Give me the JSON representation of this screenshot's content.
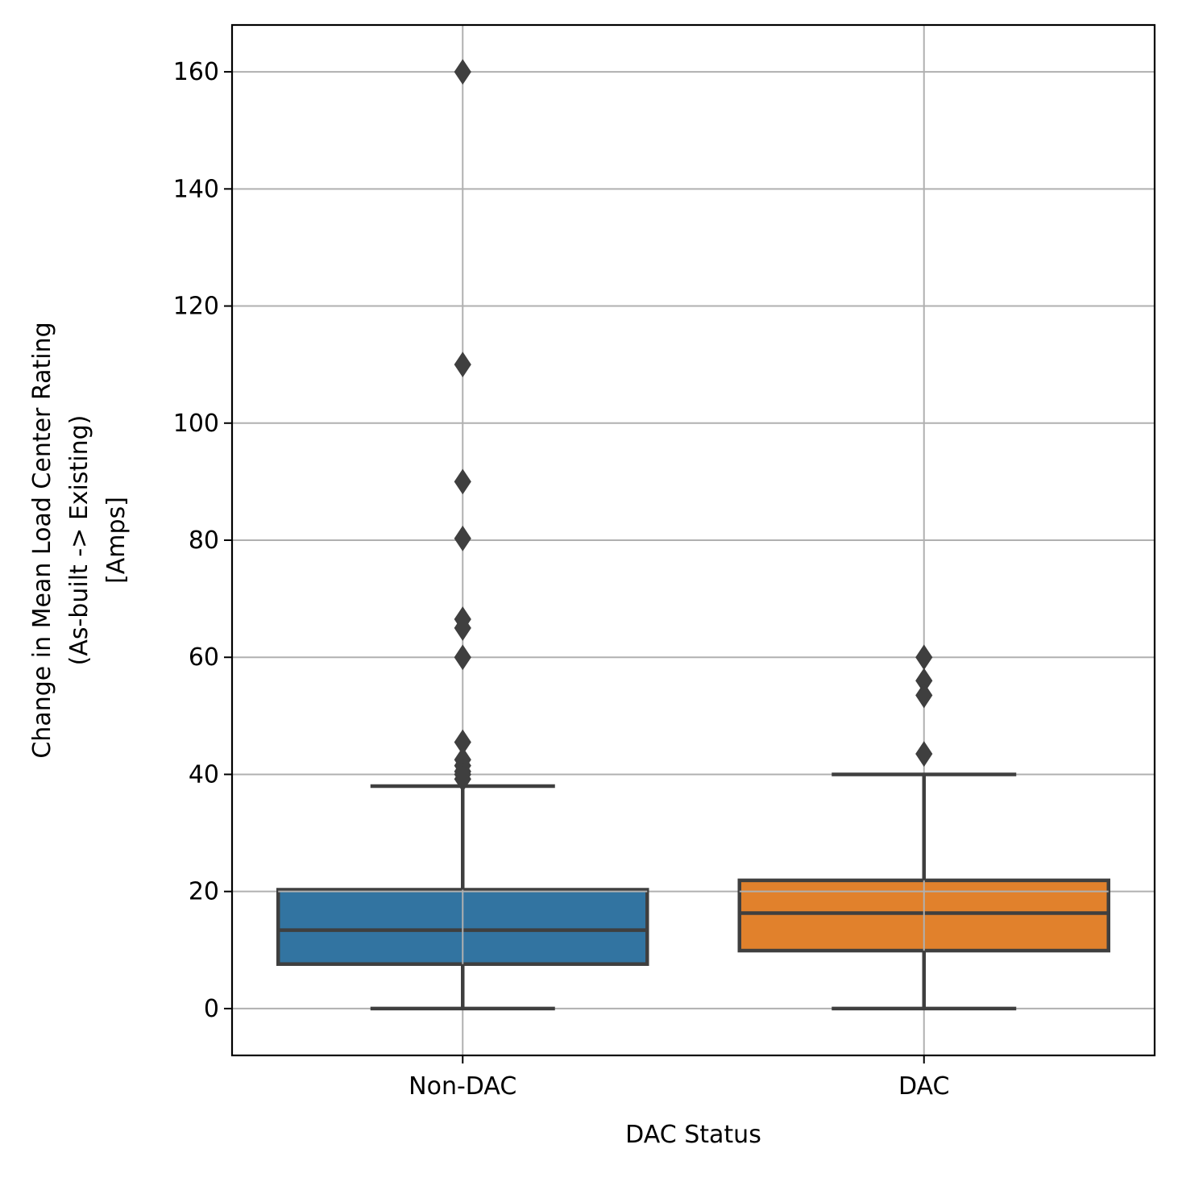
{
  "chart_data": {
    "type": "box",
    "xlabel": "DAC Status",
    "ylabel_lines": [
      "Change in Mean Load Center Rating",
      "(As-built -> Existing)",
      "[Amps]"
    ],
    "categories": [
      "Non-DAC",
      "DAC"
    ],
    "ylim": [
      -8,
      168
    ],
    "yticks": [
      0,
      20,
      40,
      60,
      80,
      100,
      120,
      140,
      160
    ],
    "grid": true,
    "boxes": [
      {
        "category": "Non-DAC",
        "color": "#3274a1",
        "whisker_low": 0,
        "q1": 7.6,
        "median": 13.4,
        "q3": 20.3,
        "whisker_high": 38,
        "outliers": [
          160,
          110,
          90,
          80.3,
          66.5,
          65,
          60,
          45.5,
          42.5,
          41.5,
          40.5,
          40,
          39.2
        ]
      },
      {
        "category": "DAC",
        "color": "#e1812c",
        "whisker_low": 0,
        "q1": 9.9,
        "median": 16.3,
        "q3": 21.9,
        "whisker_high": 40,
        "outliers": [
          60,
          56,
          53.5,
          43.5
        ]
      }
    ],
    "colors": {
      "edge": "#3f3f3f",
      "grid": "#b0b0b0"
    }
  }
}
